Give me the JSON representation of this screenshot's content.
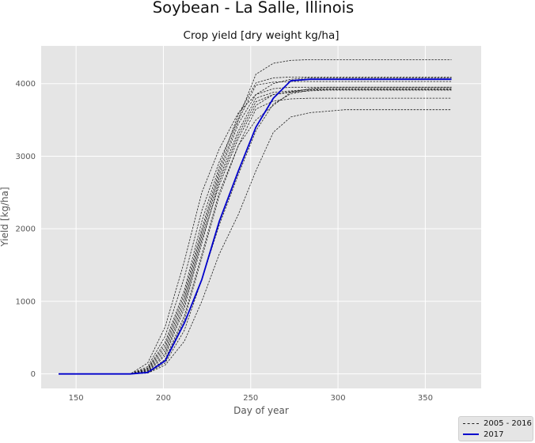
{
  "page": {
    "suptitle": "Soybean - La Salle, Illinois"
  },
  "colors": {
    "axes_bg": "#e5e5e5",
    "grid": "#ffffff",
    "historical_line": "#222222",
    "current_line": "#0000cc",
    "tick_text": "#555555"
  },
  "chart_data": {
    "type": "line",
    "title": "Crop yield [dry weight kg/ha]",
    "xlabel": "Day of year",
    "ylabel": "Yield [kg/ha]",
    "xlim": [
      130,
      382
    ],
    "ylim": [
      -200,
      4520
    ],
    "xticks": [
      150,
      200,
      250,
      300,
      350
    ],
    "yticks": [
      0,
      1000,
      2000,
      3000,
      4000
    ],
    "grid": true,
    "legend_position": "bottom-right",
    "legend": [
      {
        "label": "2005 - 2016",
        "style": "dashed-thin",
        "color": "#222222"
      },
      {
        "label": "2017",
        "style": "solid",
        "color": "#0000cc"
      }
    ],
    "historical_x": [
      140,
      150,
      160,
      170,
      181,
      191,
      201,
      212,
      222,
      232,
      243,
      253,
      263,
      273,
      284,
      294,
      304,
      314,
      324,
      335,
      345,
      355,
      365
    ],
    "historical_series": [
      [
        0,
        0,
        0,
        0,
        0,
        150,
        650,
        1550,
        2500,
        3100,
        3600,
        3850,
        4000,
        4060,
        4080,
        4080,
        4080,
        4080,
        4080,
        4080,
        4080,
        4080,
        4080
      ],
      [
        0,
        0,
        0,
        0,
        0,
        100,
        520,
        1330,
        2250,
        2920,
        3520,
        4130,
        4280,
        4320,
        4330,
        4330,
        4330,
        4330,
        4330,
        4330,
        4330,
        4330,
        4330
      ],
      [
        0,
        0,
        0,
        0,
        0,
        80,
        440,
        1150,
        2100,
        2850,
        3580,
        4010,
        4080,
        4090,
        4090,
        4090,
        4090,
        4090,
        4090,
        4090,
        4090,
        4090,
        4090
      ],
      [
        0,
        0,
        0,
        0,
        0,
        70,
        400,
        1100,
        2000,
        2800,
        3500,
        3980,
        4020,
        4030,
        4030,
        4030,
        4030,
        4030,
        4030,
        4030,
        4030,
        4030,
        4030
      ],
      [
        0,
        0,
        0,
        0,
        0,
        60,
        360,
        1050,
        1950,
        2750,
        3450,
        3850,
        3930,
        3950,
        3950,
        3950,
        3950,
        3950,
        3950,
        3950,
        3950,
        3950,
        3950
      ],
      [
        0,
        0,
        0,
        0,
        0,
        50,
        320,
        1000,
        1900,
        2700,
        3350,
        3800,
        3880,
        3900,
        3920,
        3920,
        3920,
        3920,
        3920,
        3920,
        3920,
        3920,
        3920
      ],
      [
        0,
        0,
        0,
        0,
        0,
        40,
        280,
        950,
        1850,
        2600,
        3250,
        3700,
        3850,
        3890,
        3920,
        3930,
        3930,
        3930,
        3930,
        3930,
        3930,
        3930,
        3930
      ],
      [
        0,
        0,
        0,
        0,
        0,
        30,
        250,
        900,
        1800,
        2650,
        3300,
        3750,
        3850,
        3880,
        3900,
        3910,
        3910,
        3910,
        3910,
        3910,
        3910,
        3910,
        3910
      ],
      [
        0,
        0,
        0,
        0,
        0,
        20,
        180,
        750,
        1600,
        2450,
        3150,
        3650,
        3760,
        3790,
        3800,
        3800,
        3800,
        3800,
        3800,
        3800,
        3800,
        3800,
        3800
      ],
      [
        0,
        0,
        0,
        0,
        0,
        25,
        200,
        800,
        1650,
        2500,
        3150,
        3500,
        3700,
        3880,
        3930,
        3950,
        3950,
        3950,
        3950,
        3950,
        3950,
        3950,
        3950
      ],
      [
        0,
        0,
        0,
        0,
        0,
        10,
        120,
        450,
        1000,
        1650,
        2200,
        2800,
        3330,
        3540,
        3600,
        3620,
        3640,
        3640,
        3640,
        3640,
        3640,
        3640,
        3640
      ],
      [
        0,
        0,
        0,
        0,
        0,
        15,
        150,
        600,
        1300,
        2050,
        2750,
        3350,
        3720,
        3860,
        3910,
        3920,
        3920,
        3920,
        3920,
        3920,
        3920,
        3920,
        3920
      ]
    ],
    "series": [
      {
        "name": "2017",
        "x": [
          140,
          150,
          160,
          170,
          181,
          191,
          201,
          212,
          222,
          232,
          243,
          253,
          263,
          273,
          284,
          294,
          304,
          314,
          324,
          335,
          345,
          355,
          365
        ],
        "values": [
          0,
          0,
          0,
          0,
          0,
          20,
          180,
          700,
          1300,
          2100,
          2800,
          3400,
          3800,
          4040,
          4060,
          4060,
          4060,
          4060,
          4060,
          4060,
          4060,
          4060,
          4060
        ]
      }
    ]
  }
}
